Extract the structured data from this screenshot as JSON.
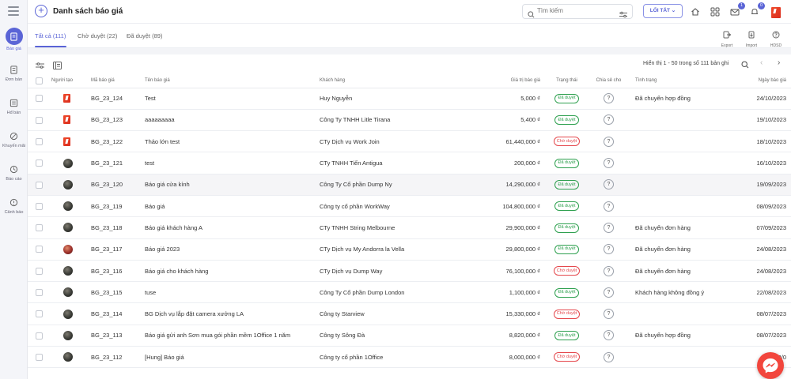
{
  "sidebar": {
    "items": [
      {
        "label": "Báo giá",
        "icon": "quote-icon",
        "active": true
      },
      {
        "label": "Đơn bán",
        "icon": "sales-order-icon"
      },
      {
        "label": "Hđ bán",
        "icon": "contract-icon"
      },
      {
        "label": "Khuyến mãi",
        "icon": "promotion-icon"
      },
      {
        "label": "Báo cáo",
        "icon": "report-icon"
      },
      {
        "label": "Cảnh báo",
        "icon": "alert-icon"
      }
    ]
  },
  "header": {
    "title": "Danh sách báo giá",
    "search_placeholder": "Tìm kiếm",
    "shortcut_label": "LỐI TẮT",
    "badges": {
      "mail": "1",
      "bell": "0"
    }
  },
  "tabs": [
    {
      "label": "Tất cả (111)",
      "active": true
    },
    {
      "label": "Chờ duyệt (22)"
    },
    {
      "label": "Đã duyệt (89)"
    }
  ],
  "tools": [
    {
      "label": "Export"
    },
    {
      "label": "Import"
    },
    {
      "label": "HDSD"
    }
  ],
  "pagination": {
    "info": "Hiển thị 1 - 50 trong số 111 bản ghi"
  },
  "columns": [
    "Người tạo",
    "Mã báo giá",
    "Tên báo giá",
    "Khách hàng",
    "Giá trị báo giá",
    "Trạng thái",
    "Chia sẻ cho",
    "Tình trạng",
    "Ngày báo giá"
  ],
  "rows": [
    {
      "avatar": "logo",
      "code": "BG_23_124",
      "name": "Test",
      "customer": "Huy Nguyễn",
      "value": "5,000 ₫",
      "status": "Đã duyệt",
      "share": "?",
      "state": "Đã chuyển hợp đồng",
      "date": "24/10/2023"
    },
    {
      "avatar": "logo",
      "code": "BG_23_123",
      "name": "aaaaaaaaa",
      "customer": "Công Ty TNHH Litle Tirana",
      "value": "5,400 ₫",
      "status": "Đã duyệt",
      "share": "?",
      "state": "",
      "date": "19/10/2023"
    },
    {
      "avatar": "logo",
      "code": "BG_23_122",
      "name": "Thảo lớn test",
      "customer": "CTy Dịch vụ Work Join",
      "value": "61,440,000 ₫",
      "status": "Chờ duyệt",
      "share": "?",
      "state": "",
      "date": "18/10/2023"
    },
    {
      "avatar": "dark",
      "code": "BG_23_121",
      "name": "test",
      "customer": "CTy TNHH Tiến Antigua",
      "value": "200,000 ₫",
      "status": "Đã duyệt",
      "share": "?",
      "state": "",
      "date": "16/10/2023"
    },
    {
      "avatar": "dark",
      "code": "BG_23_120",
      "name": "Báo giá cửa kính",
      "customer": "Công Ty Cổ phần Dump Ny",
      "value": "14,290,000 ₫",
      "status": "Đã duyệt",
      "share": "?",
      "state": "",
      "date": "19/09/2023",
      "highlight": true
    },
    {
      "avatar": "dark",
      "code": "BG_23_119",
      "name": "Báo giá",
      "customer": "Công ty cổ phần WorkWay",
      "value": "104,800,000 ₫",
      "status": "Đã duyệt",
      "share": "?",
      "state": "",
      "date": "08/09/2023"
    },
    {
      "avatar": "dark",
      "code": "BG_23_118",
      "name": "Báo giá khách hàng A",
      "customer": "CTy TNHH String Melbourne",
      "value": "29,900,000 ₫",
      "status": "Đã duyệt",
      "share": "?",
      "state": "Đã chuyển đơn hàng",
      "date": "07/09/2023"
    },
    {
      "avatar": "red",
      "code": "BG_23_117",
      "name": "Báo giá 2023",
      "customer": "CTy Dịch vụ My Andorra la Vella",
      "value": "29,800,000 ₫",
      "status": "Đã duyệt",
      "share": "?",
      "state": "Đã chuyển đơn hàng",
      "date": "24/08/2023"
    },
    {
      "avatar": "dark",
      "code": "BG_23_116",
      "name": "Báo giá cho khách hàng",
      "customer": "CTy Dịch vụ Dump Way",
      "value": "76,100,000 ₫",
      "status": "Chờ duyệt",
      "share": "?",
      "state": "Đã chuyển đơn hàng",
      "date": "24/08/2023"
    },
    {
      "avatar": "dark",
      "code": "BG_23_115",
      "name": "tuse",
      "customer": "Công Ty Cổ phần Dump London",
      "value": "1,100,000 ₫",
      "status": "Đã duyệt",
      "share": "?",
      "state": "Khách hàng không đồng ý",
      "date": "22/08/2023"
    },
    {
      "avatar": "dark",
      "code": "BG_23_114",
      "name": "BG Dịch vụ lắp đặt camera xưởng LA",
      "customer": "Công ty Starview",
      "value": "15,330,000 ₫",
      "status": "Chờ duyệt",
      "share": "?",
      "state": "",
      "date": "08/07/2023"
    },
    {
      "avatar": "dark",
      "code": "BG_23_113",
      "name": "Báo giá gửi anh Sơn mua gói phần mềm 1Office 1 năm",
      "customer": "Công ty Sông Đà",
      "value": "8,820,000 ₫",
      "status": "Đã duyệt",
      "share": "?",
      "state": "Đã chuyển hợp đồng",
      "date": "08/07/2023"
    },
    {
      "avatar": "dark",
      "code": "BG_23_112",
      "name": "[Hung] Báo giá",
      "customer": "Công ty cổ phần 1Office",
      "value": "8,000,000 ₫",
      "status": "Chờ duyệt",
      "share": "?",
      "state": "",
      "date": "28/0"
    }
  ],
  "colors": {
    "accent": "#5a64d6",
    "approved": "#2ea04f",
    "pending": "#e5484d",
    "messenger": "#f2463d"
  }
}
